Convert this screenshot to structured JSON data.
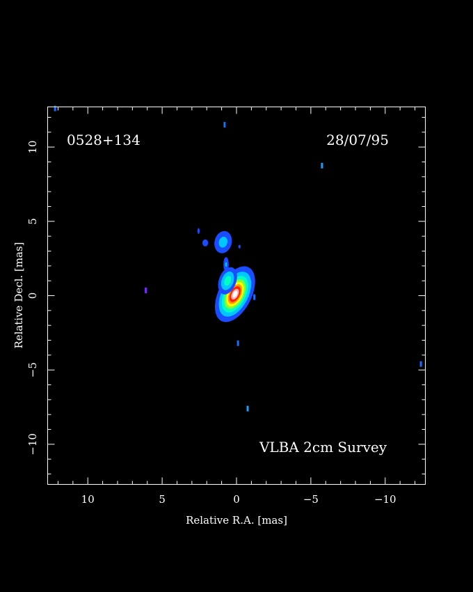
{
  "chart_data": {
    "type": "heatmap",
    "title": "",
    "source_label": "0528+134",
    "date_label": "28/07/95",
    "survey_label": "VLBA 2cm Survey",
    "xlabel": "Relative R.A. [mas]",
    "ylabel": "Relative Decl. [mas]",
    "xlim": [
      12.7,
      -12.7
    ],
    "ylim": [
      -12.7,
      12.7
    ],
    "x_ticks": [
      10,
      5,
      0,
      -5,
      -10
    ],
    "x_tick_labels": [
      "10",
      "5",
      "0",
      "−5",
      "−10"
    ],
    "y_ticks": [
      10,
      5,
      0,
      -5,
      -10
    ],
    "y_tick_labels": [
      "10",
      "5",
      "0",
      "−5",
      "−10"
    ],
    "grid": false,
    "colormap": [
      "#1a4dff",
      "#00c8ff",
      "#00ffc0",
      "#7cff3a",
      "#ffff00",
      "#ff9900",
      "#ff2200",
      "#ffb0b0",
      "#ffffff"
    ],
    "components": [
      {
        "name": "core",
        "ra": 0.1,
        "dec": 0.1,
        "major": 1.55,
        "minor": 0.85,
        "pa": 27,
        "peak": 1.0
      },
      {
        "name": "inner-jet",
        "ra": 0.6,
        "dec": 1.0,
        "major": 0.9,
        "minor": 0.55,
        "pa": 20,
        "peak": 0.38
      },
      {
        "name": "jet-bridge",
        "ra": 0.7,
        "dec": 2.1,
        "major": 0.6,
        "minor": 0.22,
        "pa": 0,
        "peak": 0.18
      },
      {
        "name": "knot-a",
        "ra": 0.9,
        "dec": 3.6,
        "major": 0.85,
        "minor": 0.65,
        "pa": 15,
        "peak": 0.22
      },
      {
        "name": "knot-b",
        "ra": 2.1,
        "dec": 3.55,
        "major": 0.3,
        "minor": 0.25,
        "pa": 0,
        "peak": 0.16
      },
      {
        "name": "knot-c",
        "ra": 2.55,
        "dec": 4.35,
        "major": 0.28,
        "minor": 0.1,
        "pa": 0,
        "peak": 0.14
      },
      {
        "name": "knot-d",
        "ra": -0.2,
        "dec": 3.3,
        "major": 0.2,
        "minor": 0.12,
        "pa": 0,
        "peak": 0.12
      }
    ],
    "noise_spots": [
      {
        "ra": 12.2,
        "dec": 12.6
      },
      {
        "ra": 0.8,
        "dec": 11.5
      },
      {
        "ra": -5.75,
        "dec": 8.75
      },
      {
        "ra": 6.1,
        "dec": 0.35
      },
      {
        "ra": -1.2,
        "dec": -0.1
      },
      {
        "ra": -0.1,
        "dec": -3.2
      },
      {
        "ra": -0.75,
        "dec": -7.6
      },
      {
        "ra": -12.4,
        "dec": -4.6
      }
    ]
  }
}
